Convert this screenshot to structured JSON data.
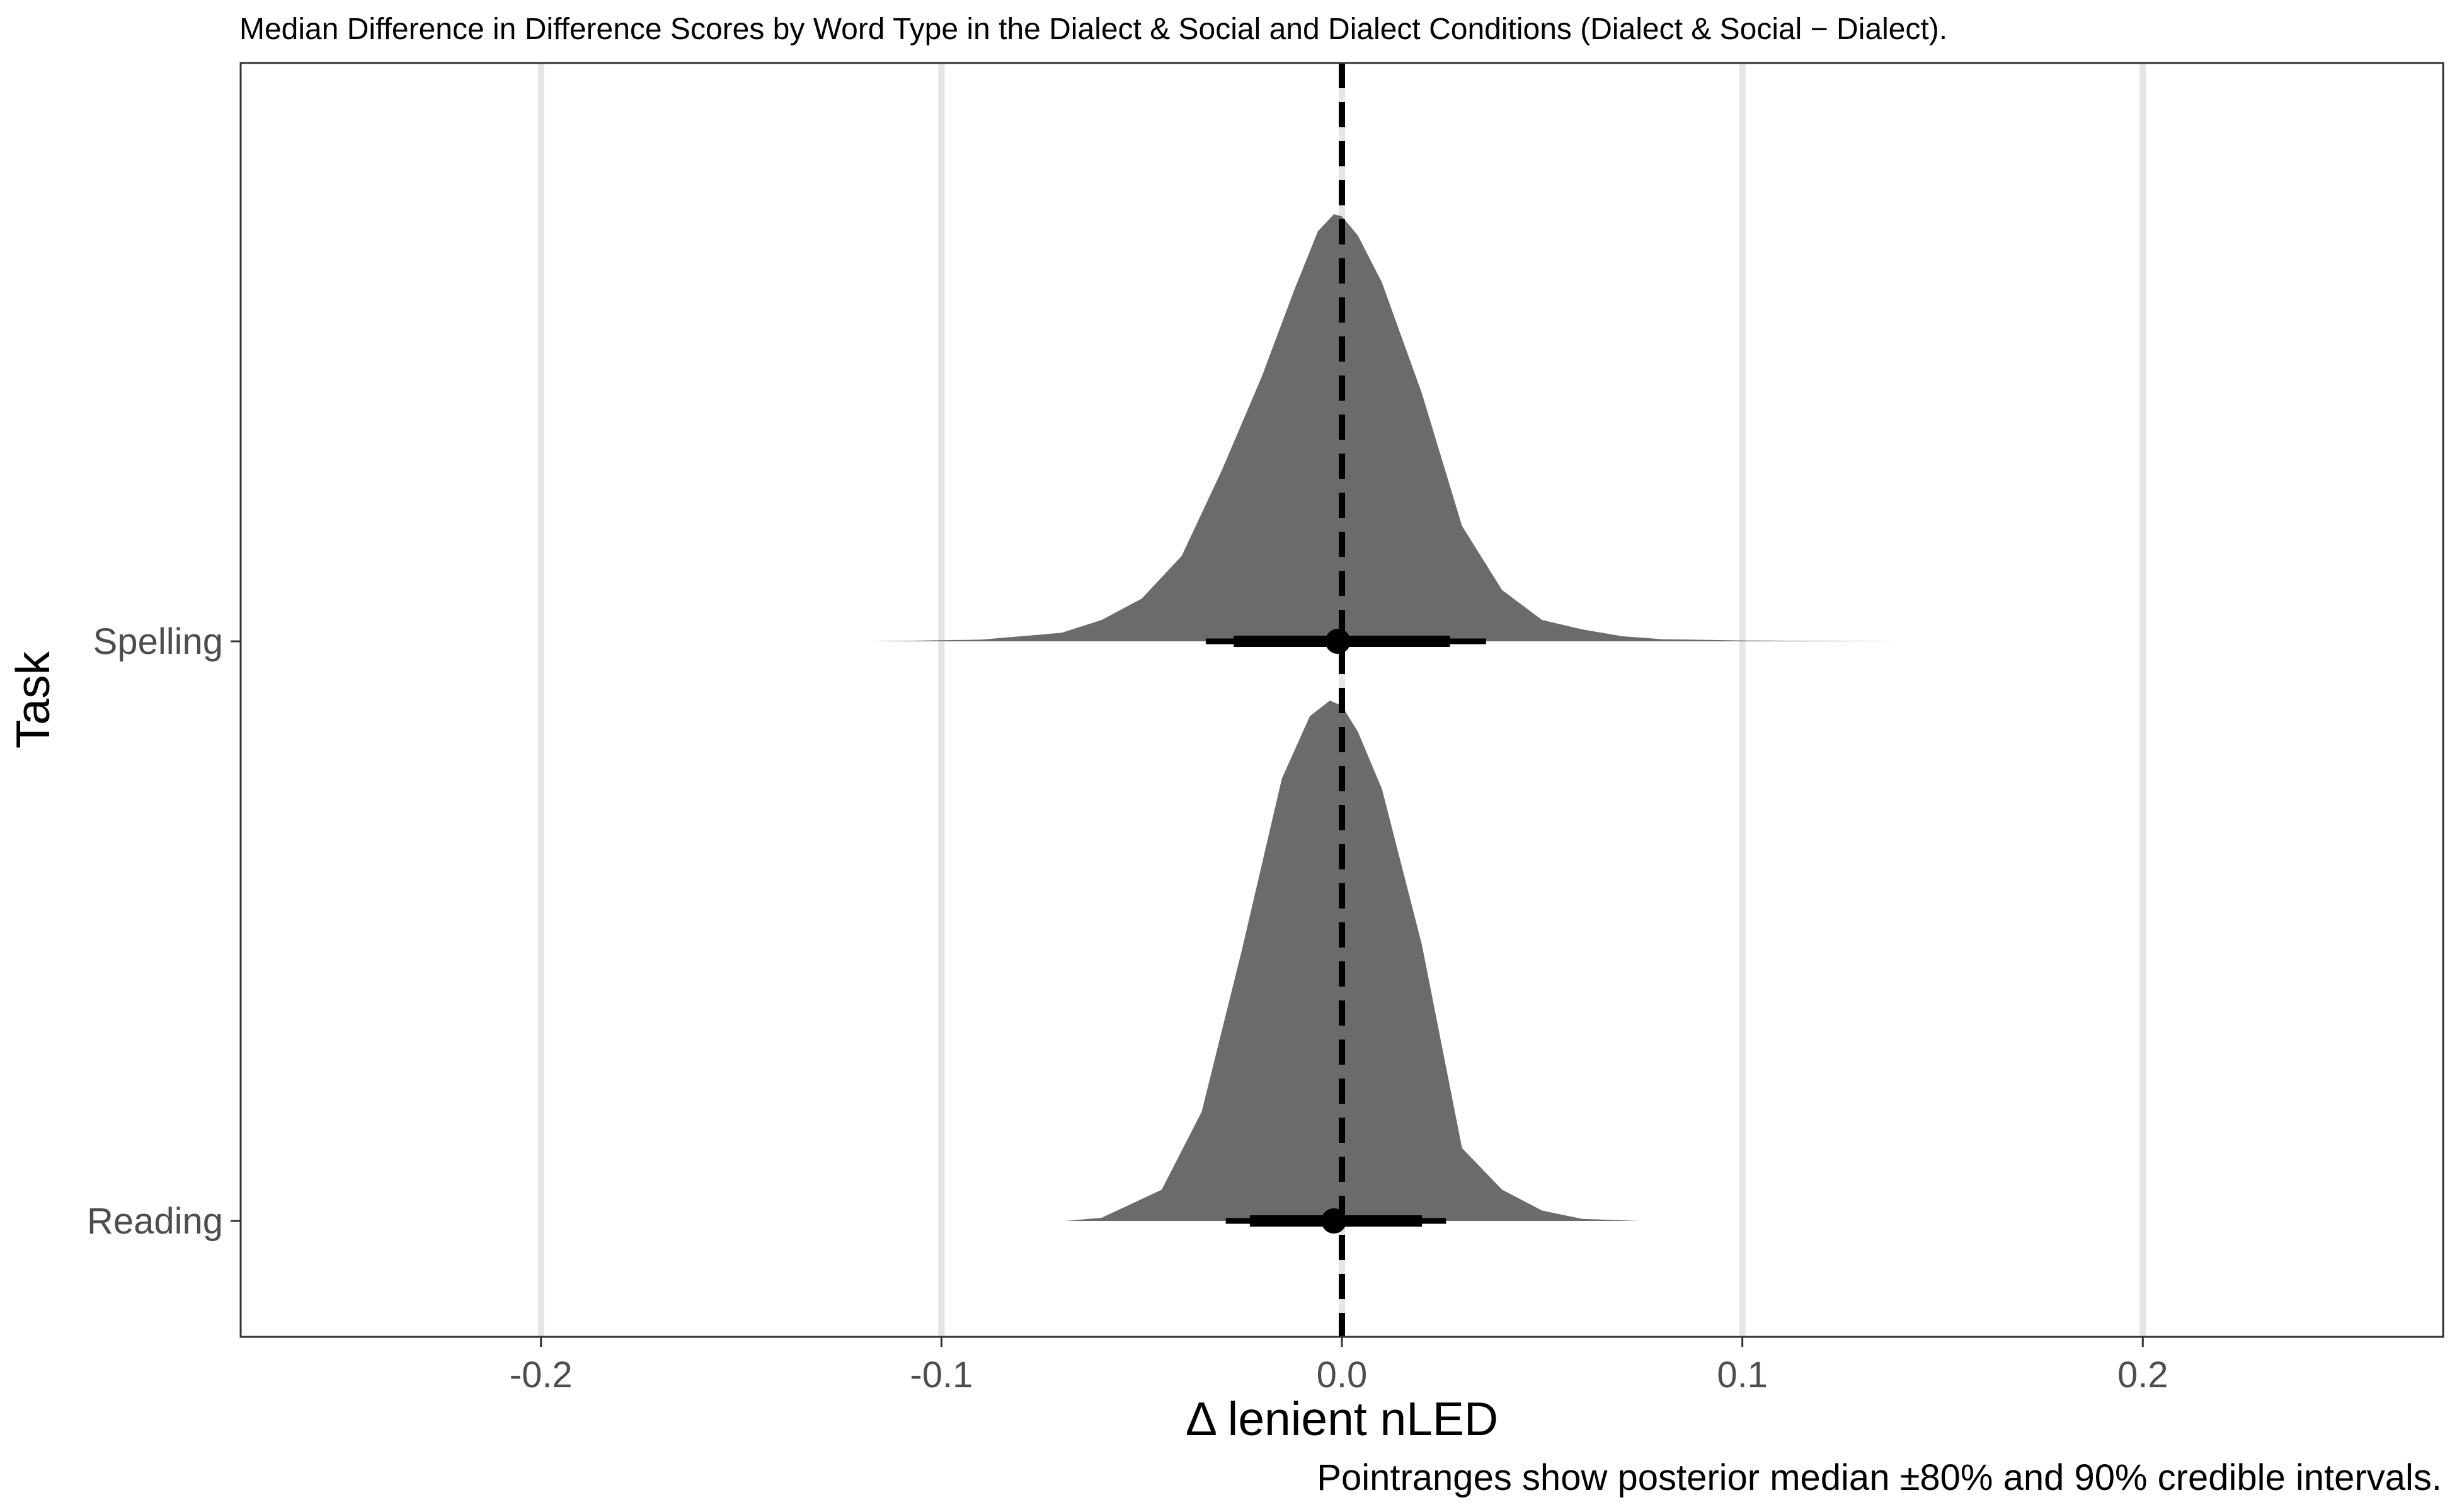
{
  "chart_data": {
    "type": "halfeye",
    "title": "Median Difference in Difference Scores by Word Type in the Dialect & Social and Dialect Conditions (Dialect & Social − Dialect).",
    "xlabel": "Δ lenient nLED",
    "ylabel": "Task",
    "caption": "Pointranges show posterior median ±80% and 90% credible intervals.",
    "xlim": [
      -0.275,
      0.275
    ],
    "x_ticks": [
      -0.2,
      -0.1,
      0.0,
      0.1,
      0.2
    ],
    "x_tick_labels": [
      "-0.2",
      "-0.1",
      "0.0",
      "0.1",
      "0.2"
    ],
    "reference_line": {
      "x": 0.0,
      "style": "dashed",
      "color": "#000000"
    },
    "grid": {
      "vertical_major": true,
      "horizontal": false
    },
    "colors": {
      "density_fill": "#6b6b6b",
      "interval": "#000000",
      "grid": "#e5e5e5"
    },
    "categories": [
      "Spelling",
      "Reading"
    ],
    "series": [
      {
        "name": "Spelling",
        "median": -0.001,
        "interval_80": [
          -0.027,
          0.027
        ],
        "interval_90": [
          -0.034,
          0.036
        ],
        "density": {
          "x": [
            -0.118,
            -0.09,
            -0.07,
            -0.06,
            -0.05,
            -0.04,
            -0.03,
            -0.02,
            -0.012,
            -0.006,
            -0.002,
            0.0,
            0.004,
            0.01,
            0.02,
            0.03,
            0.04,
            0.05,
            0.06,
            0.07,
            0.08,
            0.1,
            0.14
          ],
          "y": [
            0.0,
            0.004,
            0.02,
            0.05,
            0.1,
            0.2,
            0.4,
            0.62,
            0.82,
            0.96,
            1.0,
            0.995,
            0.95,
            0.84,
            0.58,
            0.27,
            0.12,
            0.05,
            0.028,
            0.012,
            0.005,
            0.002,
            0.0
          ]
        }
      },
      {
        "name": "Reading",
        "median": -0.002,
        "interval_80": [
          -0.023,
          0.02
        ],
        "interval_90": [
          -0.029,
          0.026
        ],
        "density": {
          "x": [
            -0.069,
            -0.06,
            -0.045,
            -0.035,
            -0.025,
            -0.015,
            -0.008,
            -0.003,
            0.0,
            0.004,
            0.01,
            0.02,
            0.03,
            0.04,
            0.05,
            0.06,
            0.074
          ],
          "y": [
            0.0,
            0.006,
            0.06,
            0.21,
            0.52,
            0.85,
            0.97,
            1.0,
            0.99,
            0.94,
            0.83,
            0.53,
            0.14,
            0.06,
            0.02,
            0.004,
            0.0
          ]
        }
      }
    ]
  }
}
